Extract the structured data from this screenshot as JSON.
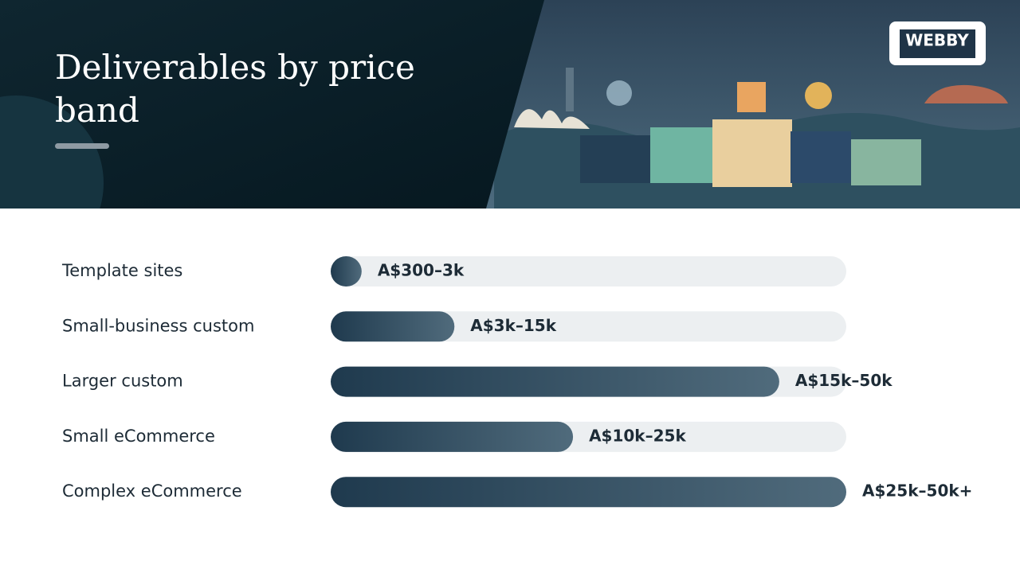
{
  "header": {
    "title": "Deliverables by price band",
    "logo": "WEBBY"
  },
  "chart_data": {
    "type": "bar",
    "orientation": "horizontal",
    "categories": [
      "Template sites",
      "Small-business custom",
      "Larger custom",
      "Small eCommerce",
      "Complex eCommerce"
    ],
    "values": [
      6,
      24,
      87,
      47,
      100
    ],
    "bar_labels": [
      "A$300–3k",
      "A$3k–15k",
      "A$15k–50k",
      "A$10k–25k",
      "A$25k–50k+"
    ],
    "xlim": [
      0,
      100
    ],
    "color": "#1f3a4e",
    "track_color": "#eceff1"
  }
}
